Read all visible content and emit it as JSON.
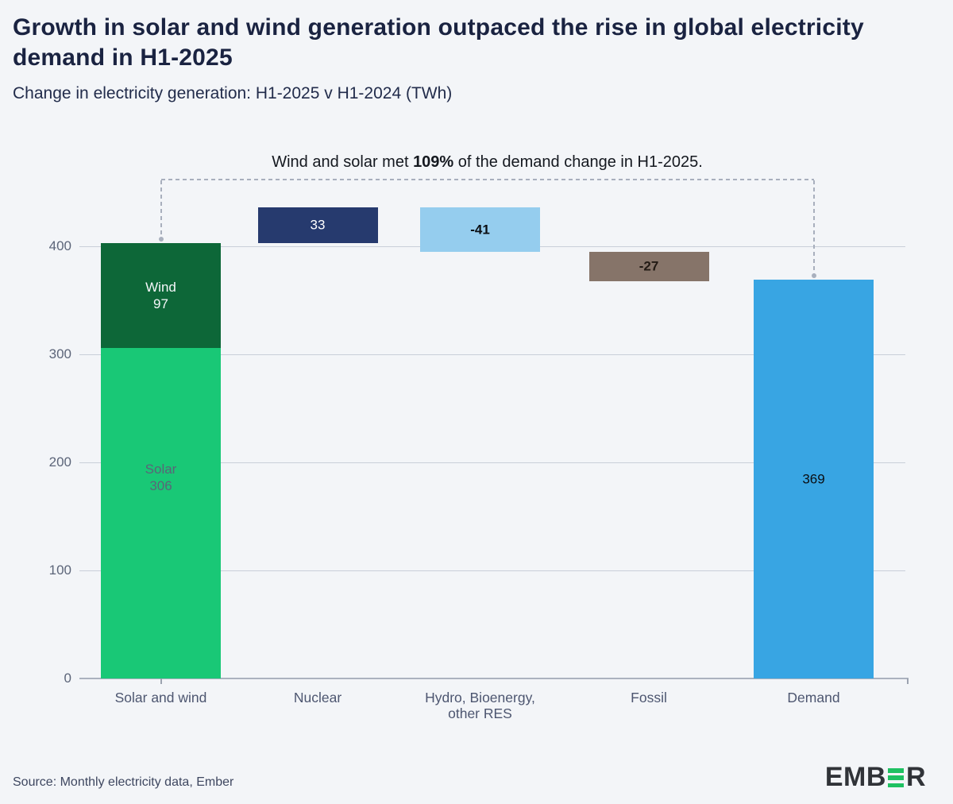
{
  "title": {
    "lines": [
      "Growth in solar and wind generation outpaced the rise in global electricity",
      "demand in H1-2025"
    ]
  },
  "subtitle": "Change in electricity generation: H1-2025 v H1-2024 (TWh)",
  "annotation": {
    "prefix": "Wind and solar met ",
    "highlight": "109%",
    "suffix": " of the demand change in H1-2025."
  },
  "source": "Source: Monthly electricity data, Ember",
  "logo": {
    "text_before": "EMB",
    "text_after": "R",
    "green_e_icon": "three-green-bars",
    "green": "#1FC162",
    "dark": "#303338"
  },
  "colors": {
    "background": "#F3F5F8",
    "title_text": "#1A2341",
    "gridline": "#C9CFD9",
    "axis_line": "#ABB2BF",
    "dashed_connector": "#A8AFBD"
  },
  "chart_data": {
    "type": "bar",
    "subtype": "waterfall",
    "unit": "TWh",
    "title": "Change in electricity generation: H1-2025 v H1-2024 (TWh)",
    "grid": "horizontal-on",
    "legend": "none",
    "y_axis": {
      "ticks": [
        0,
        100,
        200,
        300,
        400
      ],
      "range": [
        0,
        462
      ]
    },
    "x_labels": [
      {
        "lines": [
          "Solar and wind"
        ]
      },
      {
        "lines": [
          "Nuclear"
        ]
      },
      {
        "lines": [
          "Hydro, Bioenergy,",
          "other RES"
        ]
      },
      {
        "lines": [
          "Fossil"
        ]
      },
      {
        "lines": [
          "Demand"
        ]
      }
    ],
    "bars": [
      {
        "category": "Solar and wind",
        "base": 0,
        "total": 403,
        "segments": [
          {
            "name": "Solar",
            "value": 306,
            "color": "#19C876",
            "text_color": "#5A6578"
          },
          {
            "name": "Wind",
            "value": 97,
            "color": "#0D6738",
            "text_color": "#F5F7FA"
          }
        ]
      },
      {
        "category": "Nuclear",
        "base": 403,
        "value": 33,
        "label": "33",
        "color": "#263A6E",
        "text_color": "#FFFFFF",
        "bold": false
      },
      {
        "category": "Hydro, Bioenergy, other RES",
        "base": 436,
        "value": -41,
        "label": "-41",
        "color": "#95CDEE",
        "text_color": "#0B0F14",
        "bold": true
      },
      {
        "category": "Fossil",
        "base": 395,
        "value": -27,
        "label": "-27",
        "color": "#867469",
        "text_color": "#221A14",
        "bold": true
      },
      {
        "category": "Demand",
        "base": 0,
        "value": 369,
        "label": "369",
        "color": "#38A5E3",
        "text_color": "#0B0F14",
        "bold": false
      }
    ],
    "connector": {
      "from_category": "Solar and wind",
      "to_category": "Demand",
      "style": "dashed-bracket"
    }
  }
}
